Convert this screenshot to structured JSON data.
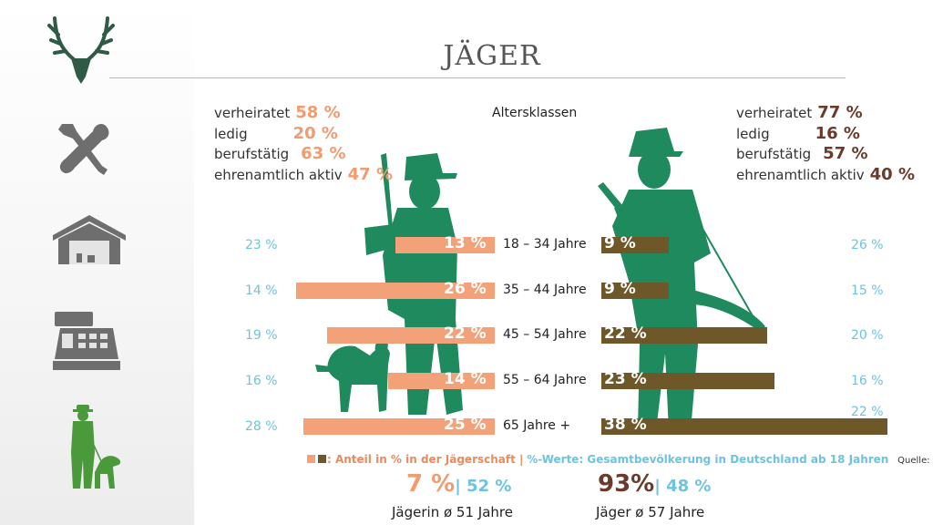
{
  "header": {
    "title": "JÄGER"
  },
  "sidebar": {
    "icons": [
      "deer-antler-icon",
      "tools-icon",
      "garage-icon",
      "cash-register-icon",
      "hunter-with-dog-icon"
    ]
  },
  "left_stats": [
    {
      "label": "verheiratet",
      "value": "58 %"
    },
    {
      "label": "ledig",
      "value": "20 %"
    },
    {
      "label": "berufstätig",
      "value": "63 %"
    },
    {
      "label": "ehrenamtlich aktiv",
      "value": "47 %"
    }
  ],
  "right_stats": [
    {
      "label": "verheiratet",
      "value": "77 %"
    },
    {
      "label": "ledig",
      "value": "16 %"
    },
    {
      "label": "berufstätig",
      "value": "57 %"
    },
    {
      "label": "ehrenamtlich aktiv",
      "value": "40 %"
    }
  ],
  "colors": {
    "female_bar": "#f2a179",
    "male_bar": "#6e5728",
    "population": "#6ec3dd",
    "silhouette": "#1e8a5e"
  },
  "chart_data": {
    "type": "bar",
    "title": "Altersklassen",
    "categories": [
      "18 – 34 Jahre",
      "35 – 44 Jahre",
      "45 – 54 Jahre",
      "55 – 64 Jahre",
      "65 Jahre +"
    ],
    "series": [
      {
        "name": "Jägerin",
        "values": [
          13,
          26,
          22,
          14,
          25
        ],
        "labels": [
          "13 %",
          "26 %",
          "22 %",
          "14 %",
          "25 %"
        ],
        "population": [
          "23 %",
          "14 %",
          "19 %",
          "16 %",
          "28 %"
        ]
      },
      {
        "name": "Jäger",
        "values": [
          9,
          9,
          22,
          23,
          38
        ],
        "labels": [
          "9 %",
          "9 %",
          "22 %",
          "23 %",
          "38 %"
        ],
        "population": [
          "26 %",
          "15 %",
          "20 %",
          "16 %",
          "22 %"
        ]
      }
    ]
  },
  "legend": {
    "share": ": Anteil in % in der Jägerschaft |",
    "population": "%-Werte: Gesamtbevölkerung in Deutschland ab 18 Jahren",
    "source": "Quelle: Destatis"
  },
  "totals": {
    "female": {
      "share": "7 %",
      "population": "| 52 %",
      "avg_age": "Jägerin ø 51 Jahre"
    },
    "male": {
      "share": "93%",
      "population": "| 48 %",
      "avg_age": "Jäger ø 57 Jahre"
    }
  }
}
